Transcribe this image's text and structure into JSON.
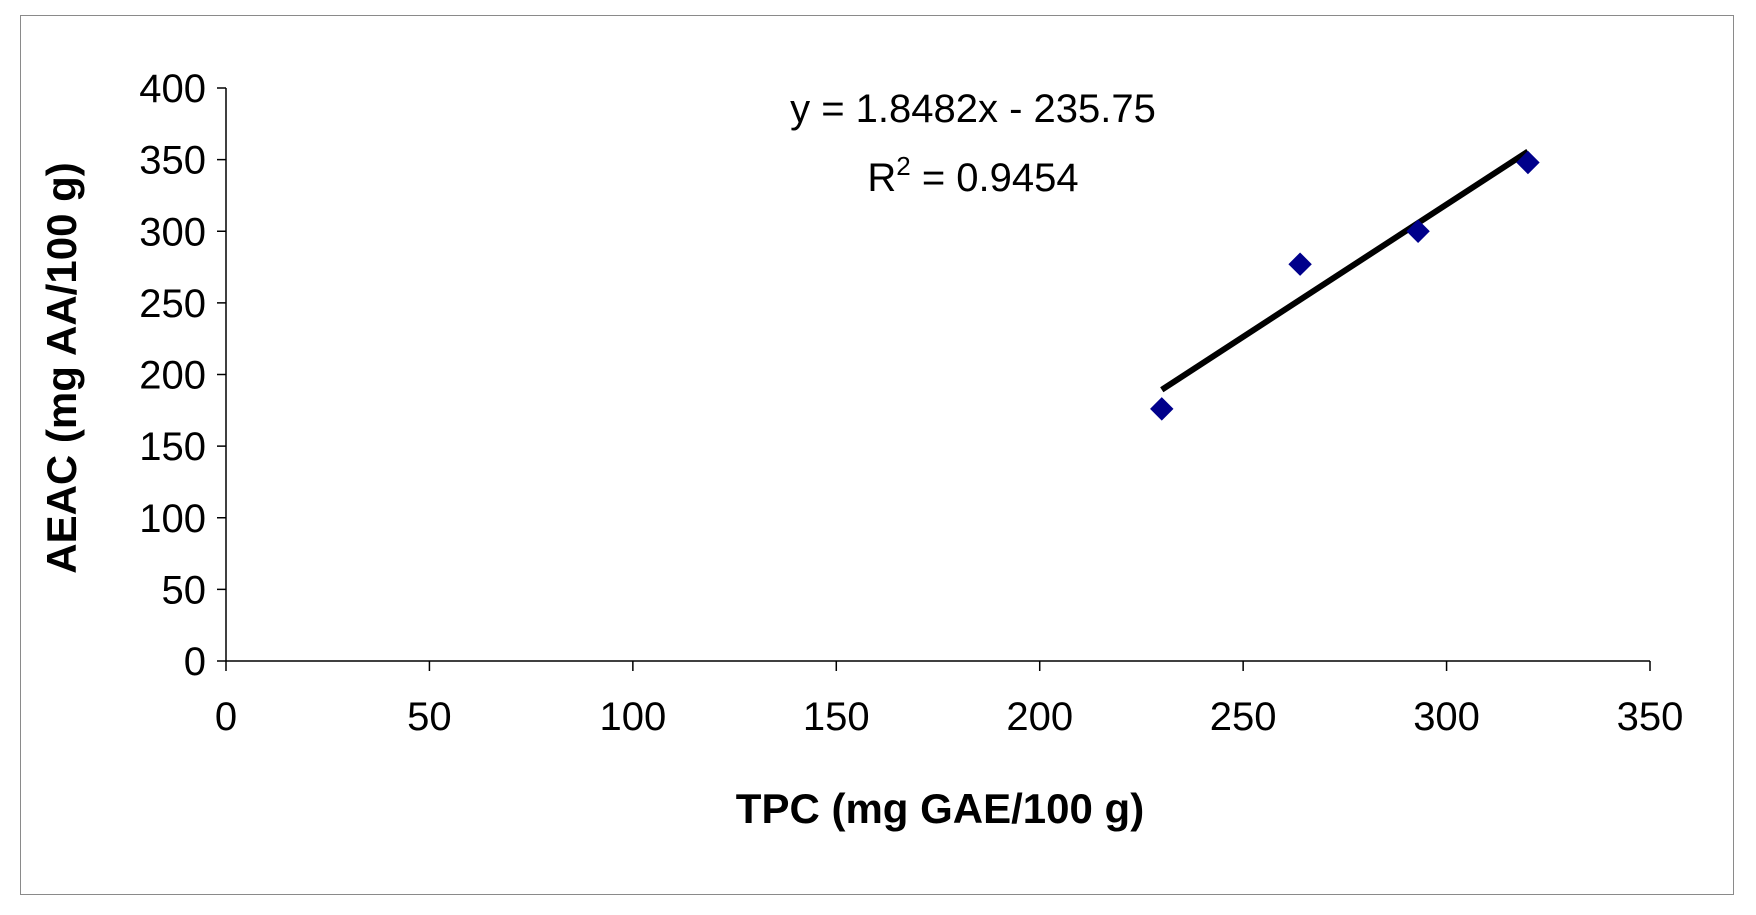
{
  "chart_data": {
    "type": "scatter",
    "xlabel": "TPC (mg GAE/100 g)",
    "ylabel": "AEAC (mg AA/100 g)",
    "xlim": [
      0,
      350
    ],
    "ylim": [
      0,
      400
    ],
    "xticks": [
      0,
      50,
      100,
      150,
      200,
      250,
      300,
      350
    ],
    "yticks": [
      0,
      50,
      100,
      150,
      200,
      250,
      300,
      350,
      400
    ],
    "grid": false,
    "series": [
      {
        "marker": "diamond",
        "color": "#00008b",
        "points": [
          {
            "x": 230,
            "y": 176
          },
          {
            "x": 264,
            "y": 277
          },
          {
            "x": 293,
            "y": 300
          },
          {
            "x": 320,
            "y": 348
          }
        ]
      }
    ],
    "trendline": {
      "type": "linear",
      "slope": 1.8482,
      "intercept": -235.75,
      "x_range": [
        230,
        320
      ],
      "color": "#000000",
      "equation_text": "y = 1.8482x - 235.75",
      "r2_prefix": "R",
      "r2_sup": "2",
      "r2_value": " = 0.9454"
    }
  }
}
